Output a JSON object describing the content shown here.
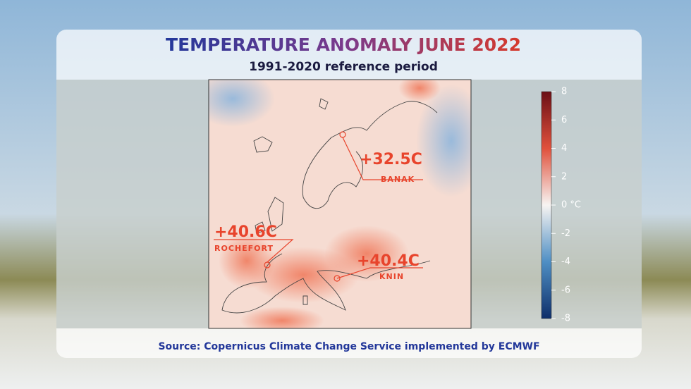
{
  "header": {
    "title": "TEMPERATURE ANOMALY JUNE 2022",
    "subtitle": "1991-2020 reference period"
  },
  "annotations": [
    {
      "value": "+32.5C",
      "place": "BANAK"
    },
    {
      "value": "+40.6C",
      "place": "ROCHEFORT"
    },
    {
      "value": "+40.4C",
      "place": "KNIN"
    }
  ],
  "colorbar": {
    "range": [
      -8,
      8
    ],
    "ticks": [
      8,
      6,
      4,
      2,
      {
        "value": 0,
        "label": "0 °C"
      },
      -2,
      -4,
      -6,
      -8
    ]
  },
  "source": "Source: Copernicus Climate Change Service implemented by ECMWF"
}
